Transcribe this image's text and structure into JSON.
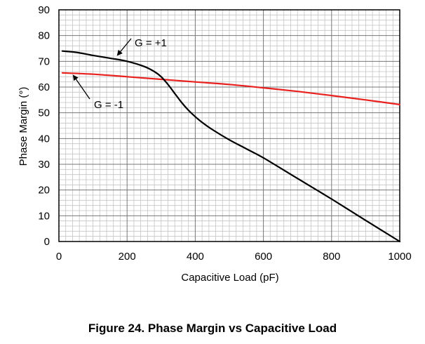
{
  "figure_caption": "Figure 24. Phase Margin vs Capacitive Load",
  "chart_data": {
    "type": "line",
    "title": "",
    "xlabel": "Capacitive Load (pF)",
    "ylabel": "Phase Margin (°)",
    "xlim": [
      0,
      1000
    ],
    "ylim": [
      0,
      90
    ],
    "xticks": [
      0,
      200,
      400,
      600,
      800,
      1000
    ],
    "yticks": [
      0,
      10,
      20,
      30,
      40,
      50,
      60,
      70,
      80,
      90
    ],
    "grid": true,
    "series": [
      {
        "name": "G = +1",
        "color": "#000000",
        "x": [
          10,
          50,
          100,
          150,
          200,
          250,
          280,
          300,
          320,
          340,
          360,
          380,
          400,
          420,
          450,
          500,
          550,
          600,
          700,
          800,
          900,
          1000
        ],
        "y": [
          74,
          73.5,
          72.3,
          71.2,
          70,
          68,
          66,
          64,
          61,
          57.5,
          54,
          51,
          48.5,
          46.3,
          43.5,
          39.5,
          36,
          32.5,
          24.5,
          16.5,
          8.2,
          0
        ]
      },
      {
        "name": "G = -1",
        "color": "#e8211e",
        "x": [
          10,
          100,
          200,
          300,
          400,
          500,
          600,
          700,
          800,
          900,
          1000
        ],
        "y": [
          65.5,
          65,
          64,
          63,
          62,
          61,
          59.7,
          58.3,
          56.7,
          55,
          53.2
        ]
      }
    ],
    "annotations": [
      {
        "text": "G = +1",
        "series": "G = +1"
      },
      {
        "text": "G = -1",
        "series": "G = -1"
      }
    ]
  }
}
